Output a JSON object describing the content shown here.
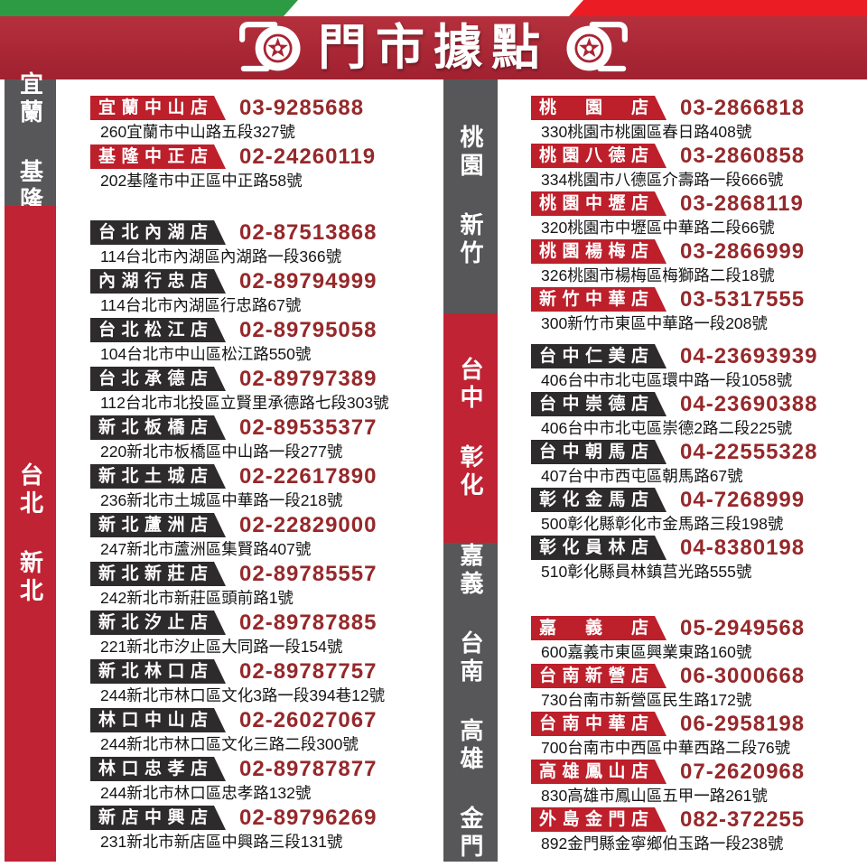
{
  "header": {
    "title": "門市據點",
    "left_icon": "tire-icon",
    "right_icon": "tire-icon",
    "stripe_colors": {
      "green": "#2d9b43",
      "white": "#ffffff",
      "red": "#ec1c24"
    },
    "banner_color": "#a82432"
  },
  "colors": {
    "badge_red": "#bd1f2b",
    "badge_dark": "#2e2b2c",
    "sidebar_gray": "#57575a",
    "sidebar_red": "#c02334",
    "phone_text": "#96282a"
  },
  "sidebars": {
    "left": {
      "segments": [
        {
          "label": "宜蘭 基隆",
          "tone": "gray"
        },
        {
          "label": "台北 新北",
          "tone": "red"
        }
      ]
    },
    "middle": {
      "segments": [
        {
          "label": "桃園 新竹",
          "tone": "gray"
        },
        {
          "label": "台中 彰化",
          "tone": "red"
        },
        {
          "label": "嘉義 台南 高雄 金門",
          "tone": "gray"
        }
      ]
    }
  },
  "columns": {
    "left": {
      "sections": [
        {
          "region": "宜蘭 基隆",
          "badge_tone": "red",
          "stores": [
            {
              "name": "宜蘭中山店",
              "phone": "03-9285688",
              "address": "260宜蘭市中山路五段327號"
            },
            {
              "name": "基隆中正店",
              "phone": "02-24260119",
              "address": "202基隆市中正區中正路58號"
            }
          ]
        },
        {
          "region": "台北 新北",
          "badge_tone": "dark",
          "stores": [
            {
              "name": "台北內湖店",
              "phone": "02-87513868",
              "address": "114台北市內湖區內湖路一段366號"
            },
            {
              "name": "內湖行忠店",
              "phone": "02-89794999",
              "address": "114台北市內湖區行忠路67號"
            },
            {
              "name": "台北松江店",
              "phone": "02-89795058",
              "address": "104台北市中山區松江路550號"
            },
            {
              "name": "台北承德店",
              "phone": "02-89797389",
              "address": "112台北市北投區立賢里承德路七段303號"
            },
            {
              "name": "新北板橋店",
              "phone": "02-89535377",
              "address": "220新北市板橋區中山路一段277號"
            },
            {
              "name": "新北土城店",
              "phone": "02-22617890",
              "address": "236新北市土城區中華路一段218號"
            },
            {
              "name": "新北蘆洲店",
              "phone": "02-22829000",
              "address": "247新北市蘆洲區集賢路407號"
            },
            {
              "name": "新北新莊店",
              "phone": "02-89785557",
              "address": "242新北市新莊區頭前路1號"
            },
            {
              "name": "新北汐止店",
              "phone": "02-89787885",
              "address": "221新北市汐止區大同路一段154號"
            },
            {
              "name": "新北林口店",
              "phone": "02-89787757",
              "address": "244新北市林口區文化3路一段394巷12號"
            },
            {
              "name": "林口中山店",
              "phone": "02-26027067",
              "address": "244新北市林口區文化三路二段300號"
            },
            {
              "name": "林口忠孝店",
              "phone": "02-89787877",
              "address": "244新北市林口區忠孝路132號"
            },
            {
              "name": "新店中興店",
              "phone": "02-89796269",
              "address": "231新北市新店區中興路三段131號"
            }
          ]
        }
      ]
    },
    "right": {
      "sections": [
        {
          "region": "桃園 新竹",
          "badge_tone": "red",
          "stores": [
            {
              "name": "桃　園　店",
              "phone": "03-2866818",
              "address": "330桃園市桃園區春日路408號"
            },
            {
              "name": "桃園八德店",
              "phone": "03-2860858",
              "address": "334桃園市八德區介壽路一段666號"
            },
            {
              "name": "桃園中壢店",
              "phone": "03-2868119",
              "address": "320桃園市中壢區中華路二段66號"
            },
            {
              "name": "桃園楊梅店",
              "phone": "03-2866999",
              "address": "326桃園市楊梅區梅獅路二段18號"
            },
            {
              "name": "新竹中華店",
              "phone": "03-5317555",
              "address": "300新竹市東區中華路一段208號"
            }
          ]
        },
        {
          "region": "台中 彰化",
          "badge_tone": "dark",
          "stores": [
            {
              "name": "台中仁美店",
              "phone": "04-23693939",
              "address": "406台中市北屯區環中路一段1058號"
            },
            {
              "name": "台中崇德店",
              "phone": "04-23690388",
              "address": "406台中市北屯區崇德2路二段225號"
            },
            {
              "name": "台中朝馬店",
              "phone": "04-22555328",
              "address": "407台中市西屯區朝馬路67號"
            },
            {
              "name": "彰化金馬店",
              "phone": "04-7268999",
              "address": "500彰化縣彰化市金馬路三段198號"
            },
            {
              "name": "彰化員林店",
              "phone": "04-8380198",
              "address": "510彰化縣員林鎮莒光路555號"
            }
          ]
        },
        {
          "region": "嘉義 台南 高雄 金門",
          "badge_tone": "red",
          "stores": [
            {
              "name": "嘉　義　店",
              "phone": "05-2949568",
              "address": "600嘉義市東區興業東路160號"
            },
            {
              "name": "台南新營店",
              "phone": "06-3000668",
              "address": "730台南市新營區民生路172號"
            },
            {
              "name": "台南中華店",
              "phone": "06-2958198",
              "address": "700台南市中西區中華西路二段76號"
            },
            {
              "name": "高雄鳳山店",
              "phone": "07-2620968",
              "address": "830高雄市鳳山區五甲一路261號"
            },
            {
              "name": "外島金門店",
              "phone": "082-372255",
              "address": "892金門縣金寧鄉伯玉路一段238號"
            }
          ]
        }
      ]
    }
  }
}
